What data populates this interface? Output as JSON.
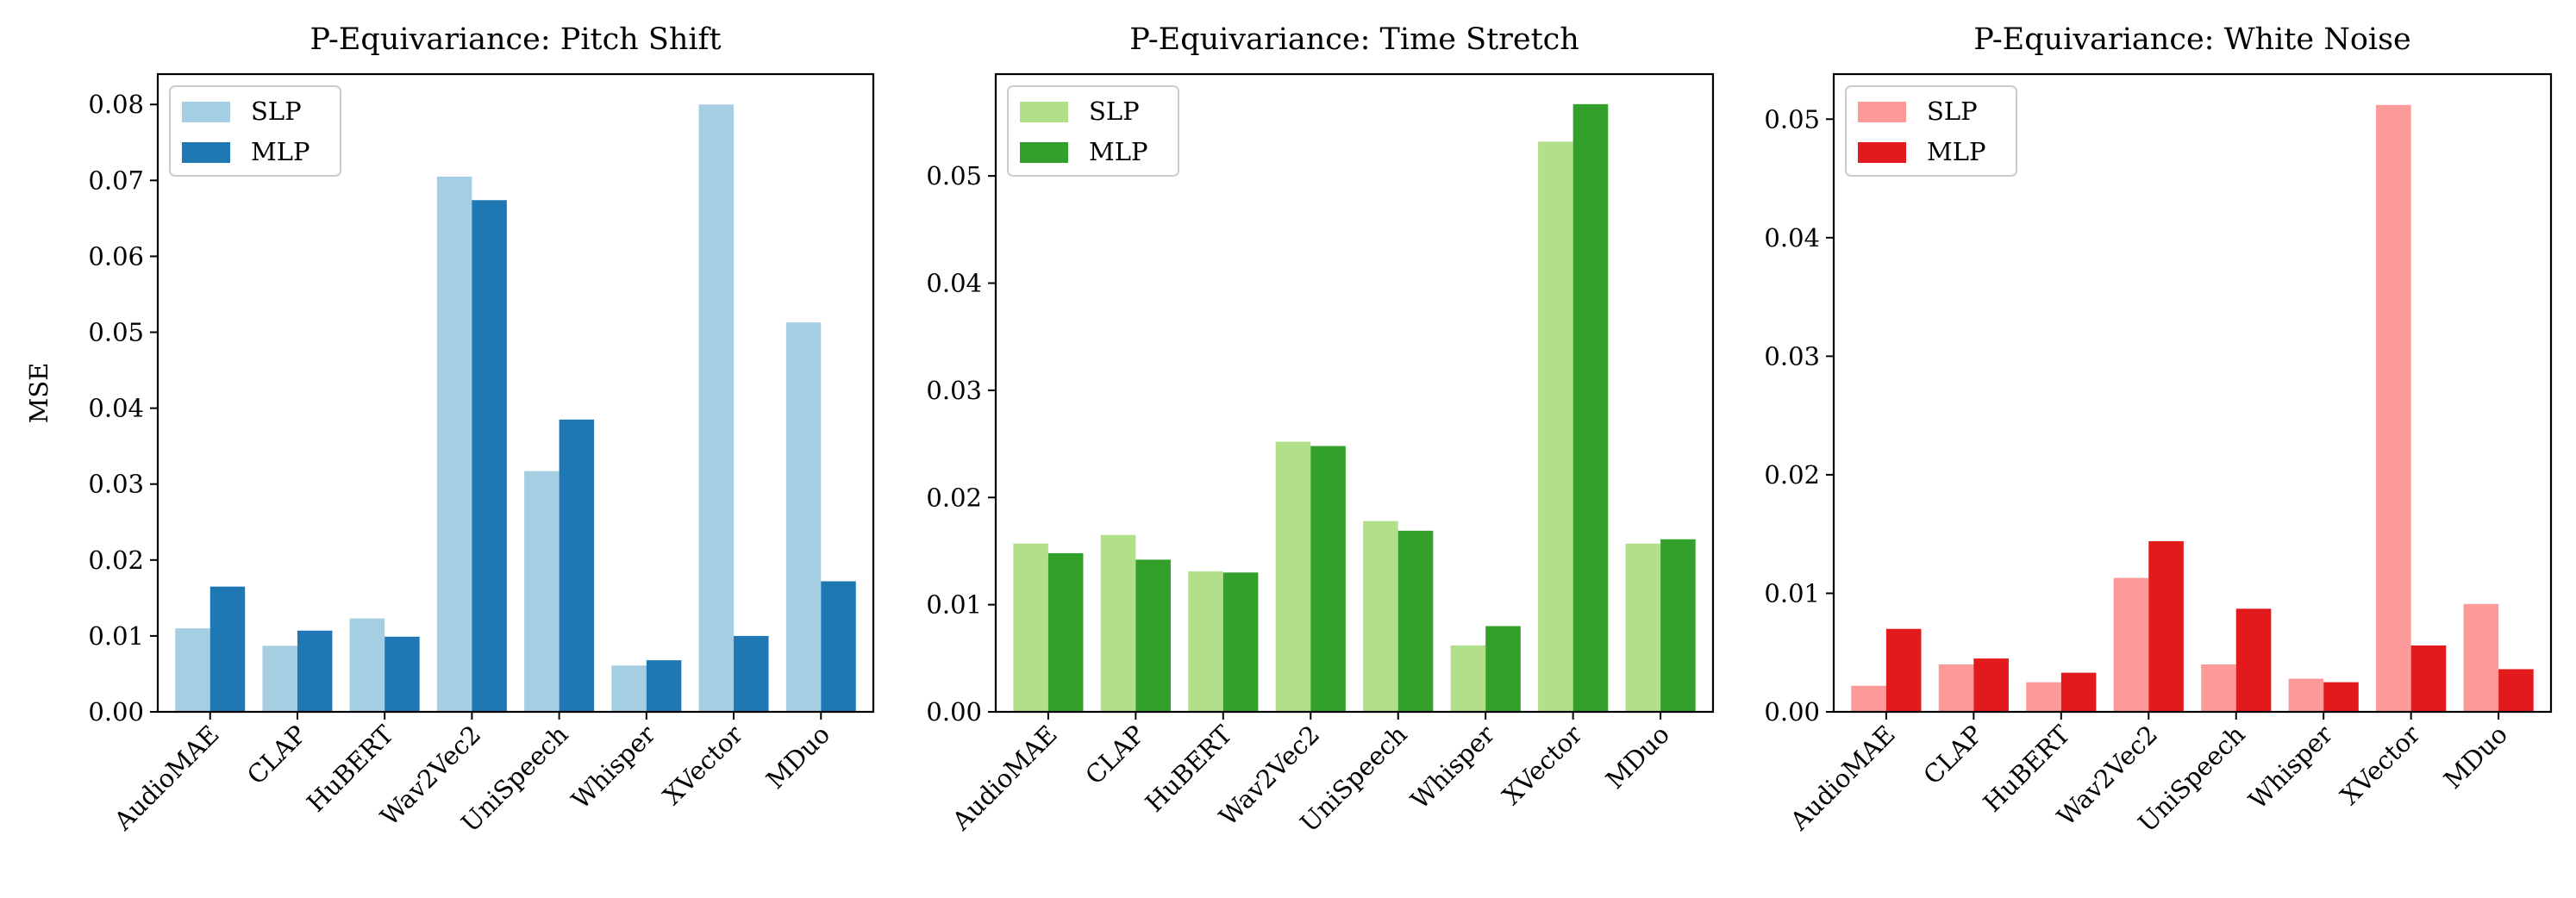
{
  "chart_data": [
    {
      "type": "bar",
      "title": "P-Equivariance: Pitch Shift",
      "xlabel": "",
      "ylabel": "MSE",
      "categories": [
        "AudioMAE",
        "CLAP",
        "HuBERT",
        "Wav2Vec2",
        "UniSpeech",
        "Whisper",
        "XVector",
        "MDuo"
      ],
      "ylim": [
        0,
        0.084
      ],
      "yticks": [
        0.0,
        0.01,
        0.02,
        0.03,
        0.04,
        0.05,
        0.06,
        0.07,
        0.08
      ],
      "ytick_labels": [
        "0.00",
        "0.01",
        "0.02",
        "0.03",
        "0.04",
        "0.05",
        "0.06",
        "0.07",
        "0.08"
      ],
      "legend_position": "top-left",
      "grid": false,
      "series": [
        {
          "name": "SLP",
          "color": "#a6cee3",
          "values": [
            0.011,
            0.0087,
            0.0123,
            0.0705,
            0.0317,
            0.0061,
            0.08,
            0.0513
          ]
        },
        {
          "name": "MLP",
          "color": "#1f78b4",
          "values": [
            0.0165,
            0.0107,
            0.0099,
            0.0674,
            0.0385,
            0.0068,
            0.01,
            0.0172
          ]
        }
      ]
    },
    {
      "type": "bar",
      "title": "P-Equivariance: Time Stretch",
      "xlabel": "",
      "ylabel": "",
      "categories": [
        "AudioMAE",
        "CLAP",
        "HuBERT",
        "Wav2Vec2",
        "UniSpeech",
        "Whisper",
        "XVector",
        "MDuo"
      ],
      "ylim": [
        0,
        0.0595
      ],
      "yticks": [
        0.0,
        0.01,
        0.02,
        0.03,
        0.04,
        0.05
      ],
      "ytick_labels": [
        "0.00",
        "0.01",
        "0.02",
        "0.03",
        "0.04",
        "0.05"
      ],
      "legend_position": "top-left",
      "grid": false,
      "series": [
        {
          "name": "SLP",
          "color": "#b2df8a",
          "values": [
            0.0157,
            0.0165,
            0.0131,
            0.0252,
            0.0178,
            0.0062,
            0.0532,
            0.0157
          ]
        },
        {
          "name": "MLP",
          "color": "#33a02c",
          "values": [
            0.0148,
            0.0142,
            0.013,
            0.0248,
            0.0169,
            0.008,
            0.0567,
            0.0161
          ]
        }
      ]
    },
    {
      "type": "bar",
      "title": "P-Equivariance: White Noise",
      "xlabel": "",
      "ylabel": "",
      "categories": [
        "AudioMAE",
        "CLAP",
        "HuBERT",
        "Wav2Vec2",
        "UniSpeech",
        "Whisper",
        "XVector",
        "MDuo"
      ],
      "ylim": [
        0,
        0.0538
      ],
      "yticks": [
        0.0,
        0.01,
        0.02,
        0.03,
        0.04,
        0.05
      ],
      "ytick_labels": [
        "0.00",
        "0.01",
        "0.02",
        "0.03",
        "0.04",
        "0.05"
      ],
      "legend_position": "top-left",
      "grid": false,
      "series": [
        {
          "name": "SLP",
          "color": "#fb9a99",
          "values": [
            0.0022,
            0.004,
            0.0025,
            0.0113,
            0.004,
            0.0028,
            0.0512,
            0.0091
          ]
        },
        {
          "name": "MLP",
          "color": "#e31a1c",
          "values": [
            0.007,
            0.0045,
            0.0033,
            0.0144,
            0.0087,
            0.0025,
            0.0056,
            0.0036
          ]
        }
      ]
    }
  ]
}
